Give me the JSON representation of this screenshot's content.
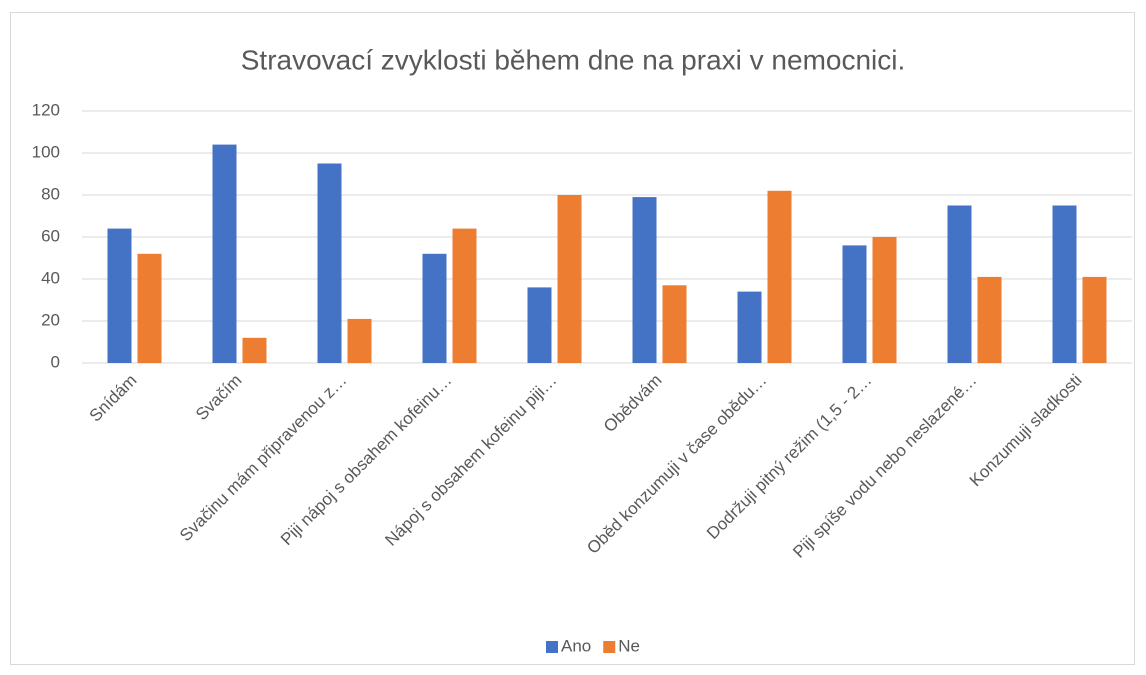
{
  "chart_data": {
    "type": "bar",
    "title": "Stravovací zvyklosti během dne na praxi v nemocnici.",
    "categories": [
      "Snídám",
      "Svačím",
      "Svačinu mám připravenou z…",
      "Piji nápoj s obsahem kofeinu…",
      "Nápoj s obsahem kofeinu piji…",
      "Obědvám",
      "Oběd konzumuji v čase obědu…",
      "Dodržuji pitný režim (1,5 - 2…",
      "Piji spíše vodu nebo neslazené…",
      "Konzumuji sladkosti"
    ],
    "series": [
      {
        "name": "Ano",
        "color": "#4472c4",
        "values": [
          64,
          104,
          95,
          52,
          36,
          79,
          34,
          56,
          75,
          75
        ]
      },
      {
        "name": "Ne",
        "color": "#ed7d31",
        "values": [
          52,
          12,
          21,
          64,
          80,
          37,
          82,
          60,
          41,
          41
        ]
      }
    ],
    "ylim": [
      0,
      120
    ],
    "yticks": [
      0,
      20,
      40,
      60,
      80,
      100,
      120
    ],
    "grid": true,
    "legend": "bottom"
  }
}
